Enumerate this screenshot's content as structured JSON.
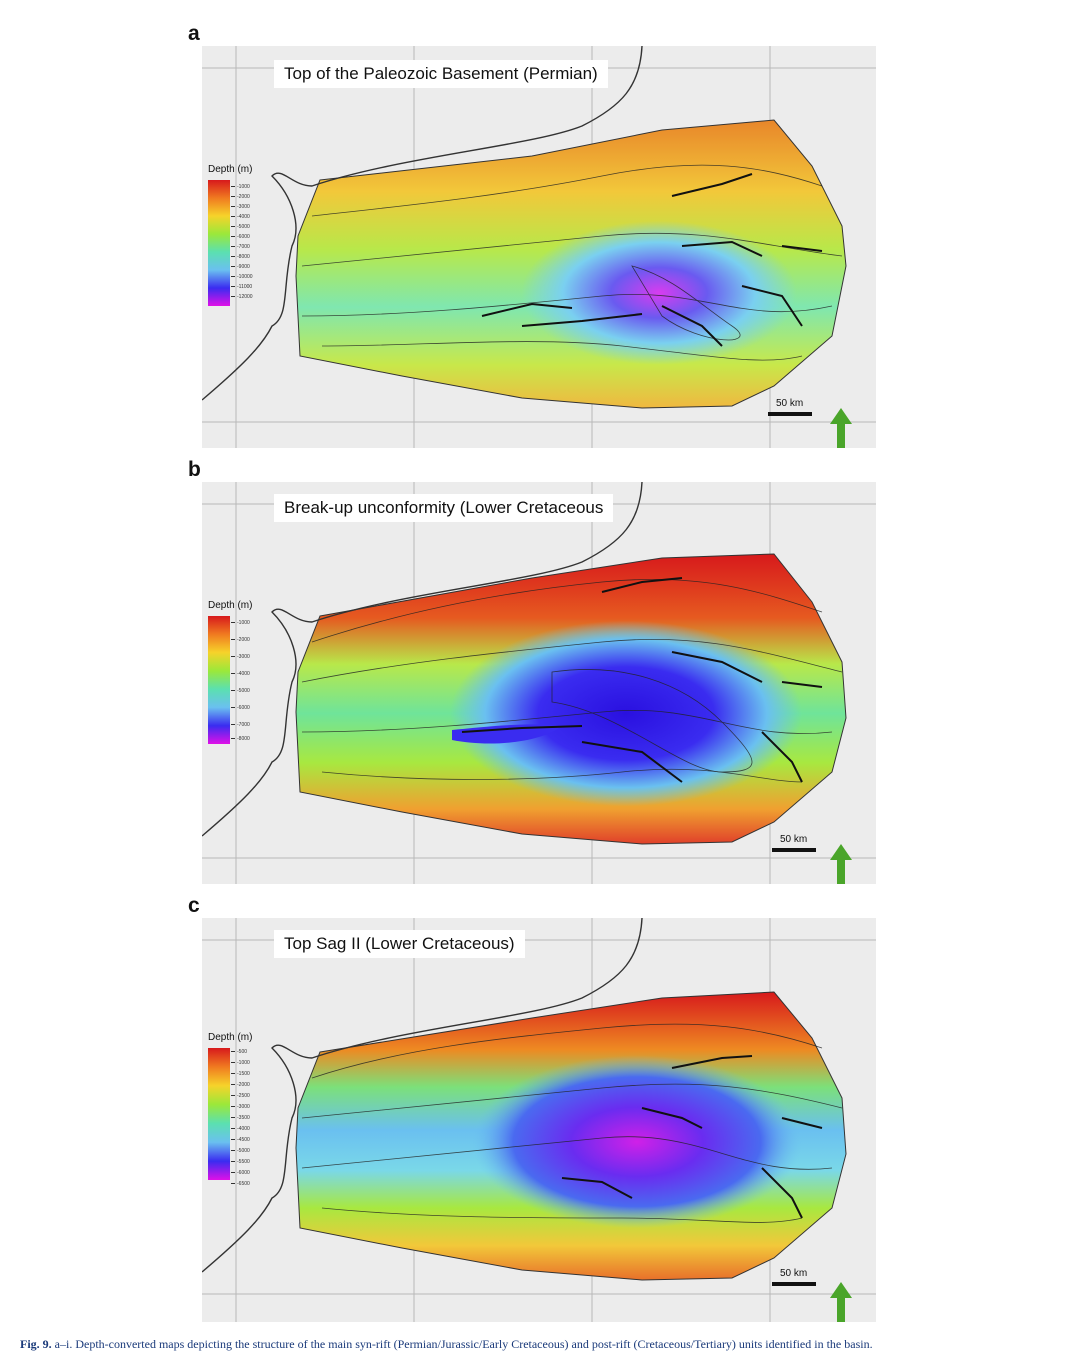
{
  "panels": [
    {
      "letter": "a",
      "title": "Top of the Paleozoic Basement (Permian)",
      "legend_title": "Depth (m)",
      "legend_ticks": [
        "-1000",
        "-2000",
        "-3000",
        "-4000",
        "-5000",
        "-6000",
        "-7000",
        "-8000",
        "-9000",
        "-10000",
        "-11000",
        "-12000"
      ],
      "scale_label": "50 km"
    },
    {
      "letter": "b",
      "title": "Break-up unconformity (Lower Cretaceous",
      "legend_title": "Depth (m)",
      "legend_ticks": [
        "-1000",
        "-2000",
        "-3000",
        "-4000",
        "-5000",
        "-6000",
        "-7000",
        "-8000"
      ],
      "scale_label": "50 km"
    },
    {
      "letter": "c",
      "title": "Top Sag II (Lower Cretaceous)",
      "legend_title": "Depth (m)",
      "legend_ticks": [
        "-500",
        "-1000",
        "-1500",
        "-2000",
        "-2500",
        "-3000",
        "-3500",
        "-4000",
        "-4500",
        "-5000",
        "-5500",
        "-6000",
        "-6500"
      ],
      "scale_label": "50 km"
    }
  ],
  "caption": {
    "fig_label": "Fig. 9.",
    "text": " a–i. Depth-converted maps depicting the structure of the main syn-rift (Permian/Jurassic/Early Cretaceous) and post-rift (Cretaceous/Tertiary) units identified in the basin."
  },
  "colors": {
    "shallow": "#d7191c",
    "mid": "#9be83a",
    "deep": "#3a2cf0",
    "deepest": "#e010e8",
    "north_arrow": "#4aa52a"
  }
}
